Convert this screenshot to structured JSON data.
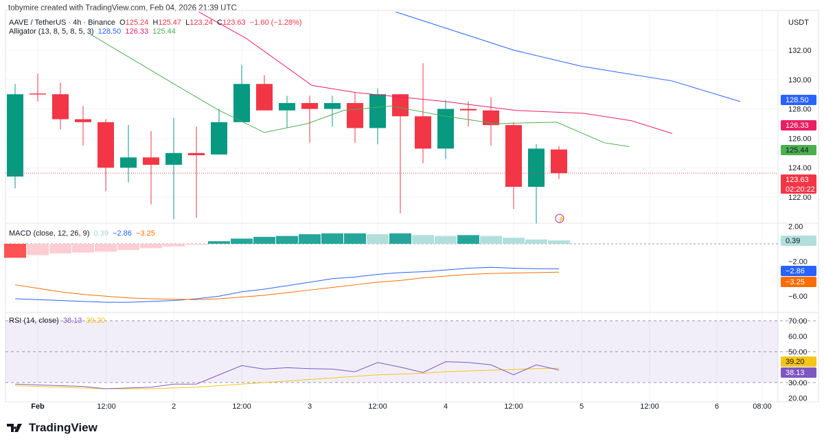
{
  "credit": "tobymire created with TradingView.com, Feb 04, 2026 21:39 UTC",
  "legend": {
    "symbol": "AAVE / TetherUS · 4h · Binance",
    "o_label": "O",
    "o": "125.24",
    "h_label": "H",
    "h": "125.47",
    "l_label": "L",
    "l": "123.24",
    "c_label": "C",
    "c": "123.63",
    "change": "−1.60 (−1.28%)",
    "alligator": "Alligator (13, 8, 5, 8, 5, 3)",
    "jaw": "128.50",
    "teeth": "126.33",
    "lips": "125.44",
    "macd": "MACD (close, 12, 26, 9)",
    "macd_hist": "0.39",
    "macd_line": "−2.86",
    "macd_signal": "−3.25",
    "rsi": "RSI (14, close)",
    "rsi_val": "38.13",
    "rsi_ma": "39.20"
  },
  "currency": "USDT",
  "logo": "TradingView",
  "colors": {
    "up": "#089981",
    "down": "#f23645",
    "jaw": "#2962ff",
    "teeth": "#e91e63",
    "lips": "#4caf50",
    "macd": "#2962ff",
    "signal": "#ff6d00",
    "rsi": "#7e57c2",
    "rsi_ma": "#f5c518"
  },
  "chart_data": [
    {
      "type": "candlestick",
      "title": "AAVE / TetherUS · 4h · Binance",
      "ylim": [
        120,
        134
      ],
      "yticks": [
        "132.00",
        "130.00",
        "128.00",
        "126.00",
        "124.00",
        "122.00"
      ],
      "candles": [
        [
          123.4,
          129.7,
          122.6,
          129.0
        ],
        [
          129.05,
          130.4,
          128.5,
          129.0
        ],
        [
          129.0,
          129.8,
          126.6,
          127.3
        ],
        [
          127.3,
          128.2,
          125.5,
          127.1
        ],
        [
          127.1,
          127.3,
          122.4,
          124.0
        ],
        [
          124.0,
          126.9,
          123.0,
          124.7
        ],
        [
          124.7,
          126.5,
          121.5,
          124.2
        ],
        [
          124.2,
          127.4,
          120.5,
          125.0
        ],
        [
          125.0,
          126.8,
          120.6,
          124.85
        ],
        [
          124.9,
          128.0,
          124.9,
          127.1
        ],
        [
          127.1,
          131.0,
          127.1,
          129.7
        ],
        [
          129.7,
          130.3,
          127.9,
          127.9
        ],
        [
          127.9,
          128.9,
          126.7,
          128.4
        ],
        [
          128.4,
          128.9,
          125.7,
          128.0
        ],
        [
          128.0,
          128.9,
          126.8,
          128.4
        ],
        [
          128.4,
          129.1,
          125.7,
          126.7
        ],
        [
          126.7,
          129.4,
          125.6,
          129.0
        ],
        [
          129.0,
          129.0,
          120.9,
          127.5
        ],
        [
          127.5,
          131.1,
          124.3,
          125.3
        ],
        [
          125.3,
          128.6,
          124.6,
          128.0
        ],
        [
          128.0,
          128.5,
          126.8,
          127.9
        ],
        [
          127.9,
          128.8,
          125.5,
          126.9
        ],
        [
          126.9,
          127.1,
          121.2,
          122.7
        ],
        [
          122.7,
          125.6,
          120.2,
          125.3
        ],
        [
          125.24,
          125.47,
          123.24,
          123.63
        ]
      ],
      "jaw": [
        [
          16.8,
          134.6
        ],
        [
          19,
          133.5
        ],
        [
          22,
          132.0
        ],
        [
          25,
          130.9
        ],
        [
          29,
          129.9
        ],
        [
          32,
          128.5
        ]
      ],
      "teeth": [
        [
          8.1,
          134.6
        ],
        [
          10.2,
          132.8
        ],
        [
          13.1,
          129.6
        ],
        [
          15.1,
          129.1
        ],
        [
          19,
          128.5
        ],
        [
          22.1,
          127.9
        ],
        [
          25.1,
          127.7
        ],
        [
          27.2,
          127.2
        ],
        [
          29,
          126.33
        ]
      ],
      "lips": [
        [
          3.3,
          133.1
        ],
        [
          6.9,
          129.8
        ],
        [
          9,
          127.9
        ],
        [
          11,
          126.4
        ],
        [
          12.9,
          127.0
        ],
        [
          14.5,
          127.9
        ],
        [
          16.6,
          128.2
        ],
        [
          19,
          127.5
        ],
        [
          21.2,
          127.0
        ],
        [
          23.9,
          127.1
        ],
        [
          26,
          125.7
        ],
        [
          27.1,
          125.44
        ]
      ],
      "last_price": "123.63",
      "countdown": "02:20:22"
    },
    {
      "type": "bar+line",
      "title": "MACD (close, 12, 26, 9)",
      "ylim": [
        -8,
        2.5
      ],
      "yticks": [
        "2.00",
        "−2.00",
        "−6.00"
      ],
      "histogram": [
        -1.6,
        -1.3,
        -1.1,
        -1.0,
        -0.9,
        -0.7,
        -0.5,
        -0.3,
        -0.1,
        0.3,
        0.6,
        0.8,
        0.9,
        1.1,
        1.2,
        1.2,
        1.1,
        1.2,
        1.0,
        0.9,
        1.0,
        0.9,
        0.7,
        0.5,
        0.39
      ],
      "macd": [
        -6.3,
        -6.4,
        -6.5,
        -6.6,
        -6.7,
        -6.7,
        -6.6,
        -6.5,
        -6.3,
        -6.0,
        -5.5,
        -5.2,
        -4.8,
        -4.4,
        -4.0,
        -3.8,
        -3.5,
        -3.3,
        -3.2,
        -3.0,
        -2.8,
        -2.7,
        -2.8,
        -2.85,
        -2.86
      ],
      "signal": [
        -4.7,
        -5.1,
        -5.5,
        -5.8,
        -6.0,
        -6.2,
        -6.3,
        -6.35,
        -6.4,
        -6.3,
        -6.1,
        -5.9,
        -5.6,
        -5.3,
        -5.0,
        -4.7,
        -4.4,
        -4.2,
        -3.9,
        -3.7,
        -3.5,
        -3.4,
        -3.35,
        -3.3,
        -3.25
      ]
    },
    {
      "type": "line",
      "title": "RSI (14, close)",
      "ylim": [
        15,
        75
      ],
      "yticks": [
        "70.00",
        "60.00",
        "50.00",
        "30.00",
        "20.00"
      ],
      "bands": [
        30,
        50,
        70
      ],
      "rsi": [
        29,
        28.5,
        28,
        27.5,
        26,
        26.5,
        27,
        29,
        29,
        35,
        41,
        38.7,
        39.6,
        39,
        38.7,
        37,
        43,
        40,
        36.5,
        43.5,
        43,
        41.5,
        35,
        41.5,
        38.13
      ],
      "rsi_ma": [
        28,
        27.5,
        27,
        26.5,
        26,
        26,
        26,
        26.5,
        27,
        28,
        29,
        30,
        31,
        32,
        33,
        34,
        35,
        35.5,
        36,
        37,
        37.5,
        38,
        38.5,
        39,
        39.2
      ]
    },
    {
      "type": "time_axis",
      "labels": [
        "Feb",
        "12:00",
        "2",
        "12:00",
        "3",
        "12:00",
        "4",
        "12:00",
        "5",
        "12:00",
        "6",
        "08:00"
      ]
    }
  ]
}
